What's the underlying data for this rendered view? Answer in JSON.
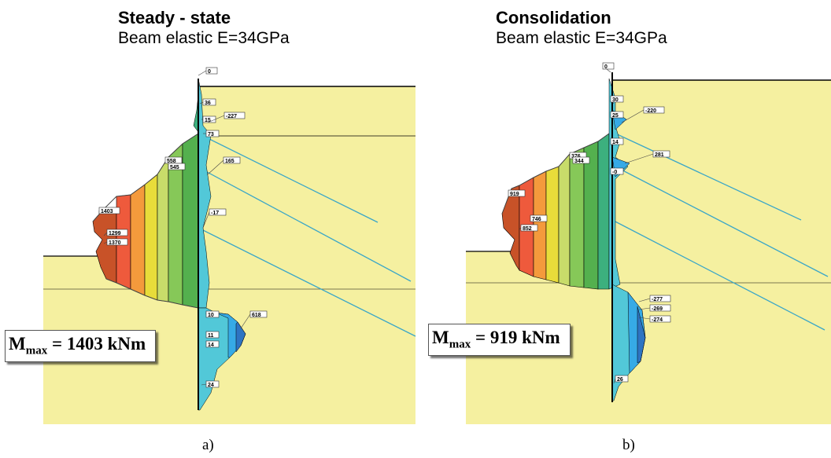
{
  "panels": [
    {
      "title": "Steady - state",
      "subtitle": "Beam elastic E=34GPa",
      "mmax": {
        "symbol": "M",
        "sub": "max",
        "value": "= 1403 kNm"
      },
      "caption": "a)",
      "labels": [
        "0",
        "36",
        "15",
        "-227",
        "73",
        "558",
        "545",
        "165",
        "-17",
        "1403",
        "1299",
        "1370",
        "10",
        "618",
        "11",
        "14",
        "24"
      ]
    },
    {
      "title": "Consolidation",
      "subtitle": "Beam elastic E=34GPa",
      "mmax": {
        "symbol": "M",
        "sub": "max",
        "value": "= 919 kNm"
      },
      "caption": "b)",
      "labels": [
        "0",
        "30",
        "25",
        "-220",
        "14",
        "376",
        "344",
        "281",
        "-0",
        "919",
        "746",
        "852",
        "-277",
        "-269",
        "-274",
        "26"
      ]
    }
  ],
  "colors": {
    "soil": "#f5f0a0",
    "wall": "#000000",
    "anchor": "#3aa6c8",
    "gradient": [
      "#c85228",
      "#ee5a3c",
      "#f49a3c",
      "#e8dc3a",
      "#c8dc6a",
      "#86c858",
      "#54b04e",
      "#3cb07e",
      "#52c8d8",
      "#36aae6",
      "#2e74c2"
    ]
  }
}
